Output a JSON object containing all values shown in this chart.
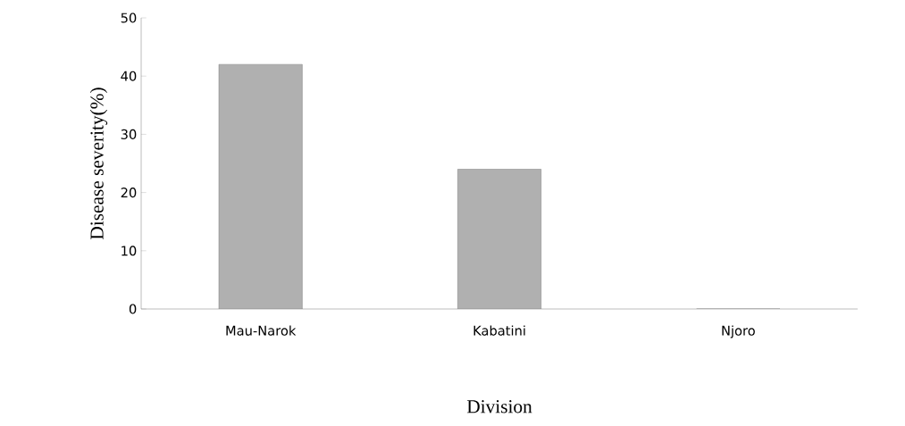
{
  "chart_data": {
    "type": "bar",
    "xlabel": "Division",
    "ylabel": "Disease  severity(%)",
    "categories": [
      "Mau-Narok",
      "Kabatini",
      "Njoro"
    ],
    "values": [
      42,
      24,
      0
    ],
    "color": "#b0b0b0",
    "ylim": [
      0,
      50
    ],
    "yticks": [
      0,
      10,
      20,
      30,
      40,
      50
    ]
  }
}
